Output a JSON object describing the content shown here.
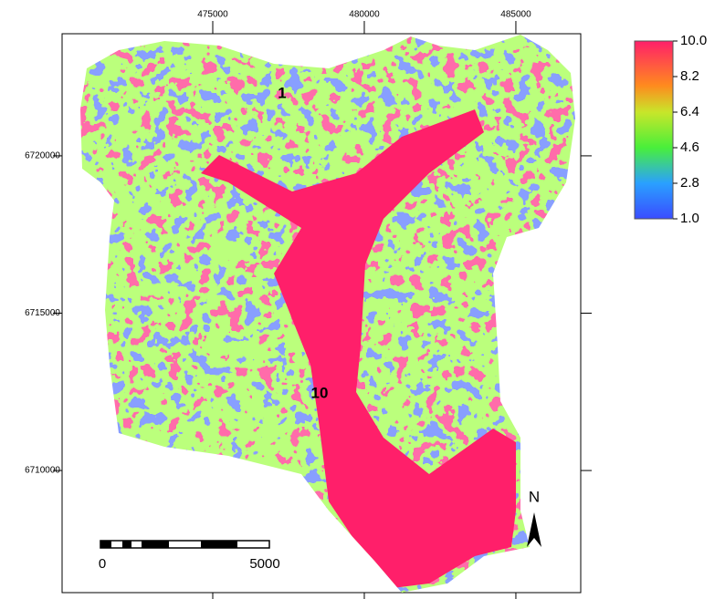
{
  "map": {
    "xlim": [
      470030,
      487140
    ],
    "ylim": [
      6706120,
      6723880
    ],
    "xticks": [
      475000,
      480000,
      485000
    ],
    "yticks": [
      6720000,
      6715000,
      6710000
    ],
    "legend": {
      "range": [
        1,
        10
      ],
      "ticks": [
        {
          "value": 10,
          "label": "10.0"
        },
        {
          "value": 8.2,
          "label": "8.2"
        },
        {
          "value": 6.4,
          "label": "6.4"
        },
        {
          "value": 4.6,
          "label": "4.6"
        },
        {
          "value": 2.8,
          "label": "2.8"
        },
        {
          "value": 1,
          "label": "1.0"
        }
      ]
    },
    "labels": [
      "1",
      "10"
    ],
    "scale_bar": {
      "labels": [
        "0",
        "5000"
      ]
    },
    "north": "N"
  }
}
